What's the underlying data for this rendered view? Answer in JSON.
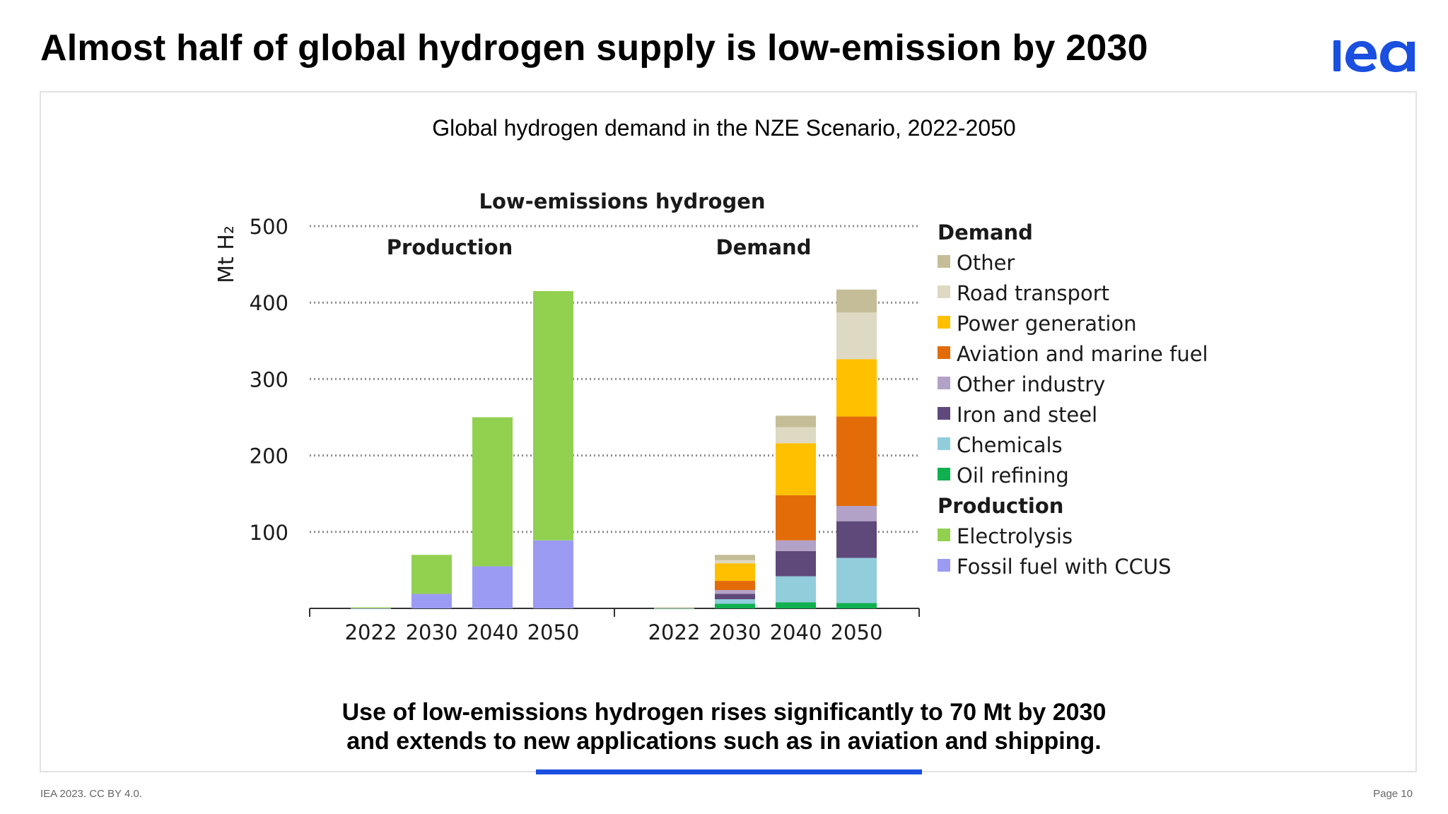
{
  "slide": {
    "title": "Almost half of global hydrogen supply is low-emission by 2030",
    "chart_subtitle": "Global hydrogen demand in the NZE Scenario, 2022-2050",
    "caption_line1": "Use of low-emissions hydrogen rises significantly to 70 Mt by 2030",
    "caption_line2": "and extends to new applications such as in aviation and shipping.",
    "footer_left": "IEA 2023. CC BY 4.0.",
    "footer_right": "Page 10",
    "logo_icon": "iea-logo-icon",
    "logo_color": "#1a4fe0"
  },
  "chart_data": {
    "type": "bar",
    "stacked": true,
    "title": "Low-emissions hydrogen",
    "ylabel": "Mt H₂",
    "ylim": [
      0,
      500
    ],
    "yticks": [
      "100",
      "200",
      "300",
      "400",
      "500"
    ],
    "grid": "dotted",
    "legend_position": "right",
    "groups": [
      {
        "name": "Production",
        "categories": [
          "2022",
          "2030",
          "2040",
          "2050"
        ],
        "series": [
          {
            "name": "Fossil fuel with CCUS",
            "color": "#9b9bf4",
            "values": [
              0.6,
              19,
              55,
              89
            ]
          },
          {
            "name": "Electrolysis",
            "color": "#92d050",
            "values": [
              0.7,
              51,
              195,
              326
            ]
          }
        ]
      },
      {
        "name": "Demand",
        "categories": [
          "2022",
          "2030",
          "2040",
          "2050"
        ],
        "series": [
          {
            "name": "Oil refining",
            "color": "#10b050",
            "values": [
              0.4,
              6,
              8,
              7
            ]
          },
          {
            "name": "Chemicals",
            "color": "#92cddc",
            "values": [
              0.3,
              6,
              34,
              59
            ]
          },
          {
            "name": "Iron and steel",
            "color": "#5f497a",
            "values": [
              0.2,
              7,
              33,
              48
            ]
          },
          {
            "name": "Other industry",
            "color": "#b3a2c7",
            "values": [
              0.1,
              5,
              14,
              20
            ]
          },
          {
            "name": "Aviation and marine fuel",
            "color": "#e36c09",
            "values": [
              0,
              12,
              59,
              117
            ]
          },
          {
            "name": "Power generation",
            "color": "#ffc000",
            "values": [
              0,
              23,
              68,
              75
            ]
          },
          {
            "name": "Road transport",
            "color": "#ddd9c3",
            "values": [
              0,
              4,
              21,
              61
            ]
          },
          {
            "name": "Other",
            "color": "#c4bd97",
            "values": [
              0.3,
              7,
              15,
              30
            ]
          }
        ]
      }
    ],
    "legend": [
      {
        "heading": "Demand",
        "items": [
          {
            "name": "Other",
            "color": "#c4bd97"
          },
          {
            "name": "Road transport",
            "color": "#ddd9c3"
          },
          {
            "name": "Power generation",
            "color": "#ffc000"
          },
          {
            "name": "Aviation and marine fuel",
            "color": "#e36c09"
          },
          {
            "name": "Other industry",
            "color": "#b3a2c7"
          },
          {
            "name": "Iron and steel",
            "color": "#5f497a"
          },
          {
            "name": "Chemicals",
            "color": "#92cddc"
          },
          {
            "name": "Oil refining",
            "color": "#10b050"
          }
        ]
      },
      {
        "heading": "Production",
        "items": [
          {
            "name": "Electrolysis",
            "color": "#92d050"
          },
          {
            "name": "Fossil fuel with CCUS",
            "color": "#9b9bf4"
          }
        ]
      }
    ]
  }
}
